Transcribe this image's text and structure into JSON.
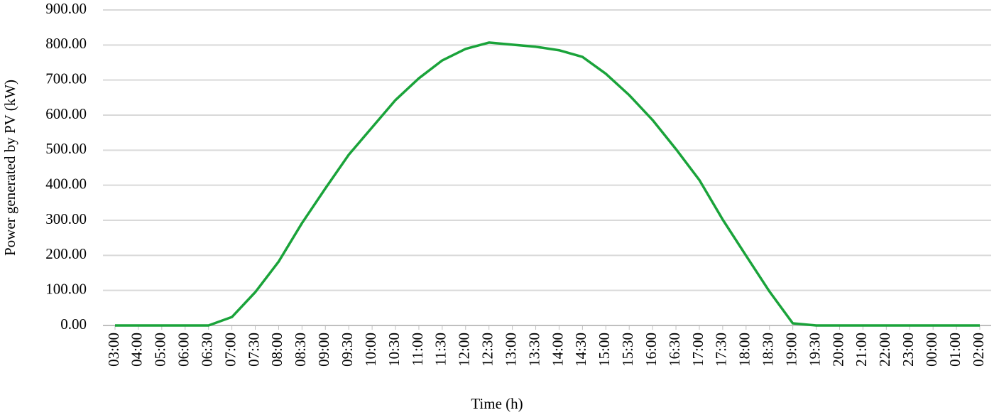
{
  "chart_data": {
    "type": "line",
    "x_label": "Time (h)",
    "y_label": "Power generated by PV (kW)",
    "categories": [
      "03:00",
      "04:00",
      "05:00",
      "06:00",
      "06:30",
      "07:00",
      "07:30",
      "08:00",
      "08:30",
      "09:00",
      "09:30",
      "10:00",
      "10:30",
      "11:00",
      "11:30",
      "12:00",
      "12:30",
      "13:00",
      "13:30",
      "14:00",
      "14:30",
      "15:00",
      "15:30",
      "16:00",
      "16:30",
      "17:00",
      "17:30",
      "18:00",
      "18:30",
      "19:00",
      "19:30",
      "20:00",
      "21:00",
      "22:00",
      "23:00",
      "00:00",
      "01:00",
      "02:00"
    ],
    "values": [
      0,
      0,
      0,
      0,
      0,
      24,
      95,
      182,
      292,
      391,
      487,
      565,
      643,
      705,
      756,
      789,
      807,
      801,
      795,
      785,
      766,
      718,
      657,
      586,
      503,
      415,
      302,
      199,
      97,
      6,
      0,
      0,
      0,
      0,
      0,
      0,
      0,
      0
    ],
    "color": "#1aa33a",
    "ylim": [
      0,
      900
    ],
    "yticks": [
      {
        "value": 0,
        "label": "0.00"
      },
      {
        "value": 100,
        "label": "100.00"
      },
      {
        "value": 200,
        "label": "200.00"
      },
      {
        "value": 300,
        "label": "300.00"
      },
      {
        "value": 400,
        "label": "400.00"
      },
      {
        "value": 500,
        "label": "500.00"
      },
      {
        "value": 600,
        "label": "600.00"
      },
      {
        "value": 700,
        "label": "700.00"
      },
      {
        "value": 800,
        "label": "800.00"
      },
      {
        "value": 900,
        "label": "900.00"
      }
    ],
    "grid": true
  }
}
